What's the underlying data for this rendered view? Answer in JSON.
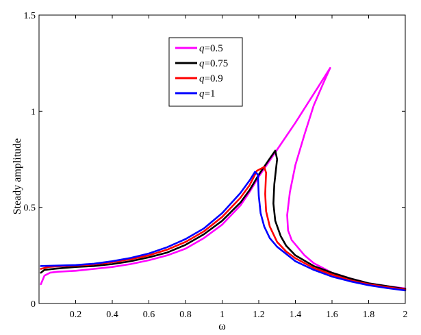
{
  "chart_data": {
    "type": "line",
    "xlabel": "ω",
    "ylabel": "Steady amplitude",
    "xlim": [
      0,
      2
    ],
    "ylim": [
      0,
      1.5
    ],
    "x_ticks": [
      "0.2",
      "0.4",
      "0.6",
      "0.8",
      "1",
      "1.2",
      "1.4",
      "1.6",
      "1.8",
      "2"
    ],
    "y_ticks": [
      "0",
      "0.5",
      "1",
      "1.5"
    ],
    "grid": false,
    "legend_position": "top-center",
    "series": [
      {
        "name": "q=0.5",
        "legend_var": "q",
        "legend_val": "=0.5",
        "color": "#ff00ff",
        "points": [
          [
            0.01,
            0.1
          ],
          [
            0.03,
            0.145
          ],
          [
            0.06,
            0.16
          ],
          [
            0.1,
            0.165
          ],
          [
            0.2,
            0.17
          ],
          [
            0.3,
            0.18
          ],
          [
            0.4,
            0.19
          ],
          [
            0.5,
            0.205
          ],
          [
            0.6,
            0.225
          ],
          [
            0.7,
            0.25
          ],
          [
            0.8,
            0.285
          ],
          [
            0.9,
            0.34
          ],
          [
            1.0,
            0.41
          ],
          [
            1.1,
            0.51
          ],
          [
            1.15,
            0.58
          ],
          [
            1.2,
            0.66
          ],
          [
            1.3,
            0.8
          ],
          [
            1.4,
            0.94
          ],
          [
            1.5,
            1.09
          ],
          [
            1.59,
            1.225
          ],
          [
            1.55,
            1.14
          ],
          [
            1.5,
            1.03
          ],
          [
            1.45,
            0.88
          ],
          [
            1.4,
            0.72
          ],
          [
            1.37,
            0.58
          ],
          [
            1.355,
            0.46
          ],
          [
            1.36,
            0.38
          ],
          [
            1.38,
            0.33
          ],
          [
            1.45,
            0.25
          ],
          [
            1.5,
            0.21
          ],
          [
            1.6,
            0.16
          ],
          [
            1.7,
            0.13
          ],
          [
            1.8,
            0.105
          ],
          [
            1.9,
            0.09
          ],
          [
            2.0,
            0.078
          ]
        ]
      },
      {
        "name": "q=0.75",
        "legend_var": "q",
        "legend_val": "=0.75",
        "color": "#000000",
        "points": [
          [
            0.01,
            0.16
          ],
          [
            0.03,
            0.175
          ],
          [
            0.1,
            0.182
          ],
          [
            0.2,
            0.19
          ],
          [
            0.3,
            0.195
          ],
          [
            0.4,
            0.205
          ],
          [
            0.5,
            0.22
          ],
          [
            0.6,
            0.24
          ],
          [
            0.7,
            0.265
          ],
          [
            0.8,
            0.305
          ],
          [
            0.9,
            0.36
          ],
          [
            1.0,
            0.43
          ],
          [
            1.1,
            0.525
          ],
          [
            1.15,
            0.59
          ],
          [
            1.2,
            0.67
          ],
          [
            1.25,
            0.74
          ],
          [
            1.29,
            0.795
          ],
          [
            1.3,
            0.75
          ],
          [
            1.285,
            0.62
          ],
          [
            1.28,
            0.52
          ],
          [
            1.29,
            0.43
          ],
          [
            1.32,
            0.35
          ],
          [
            1.35,
            0.3
          ],
          [
            1.4,
            0.25
          ],
          [
            1.5,
            0.195
          ],
          [
            1.6,
            0.16
          ],
          [
            1.7,
            0.13
          ],
          [
            1.8,
            0.105
          ],
          [
            1.9,
            0.09
          ],
          [
            2.0,
            0.075
          ]
        ]
      },
      {
        "name": "q=0.9",
        "legend_var": "q",
        "legend_val": "=0.9",
        "color": "#ff0000",
        "points": [
          [
            0.01,
            0.18
          ],
          [
            0.05,
            0.19
          ],
          [
            0.1,
            0.193
          ],
          [
            0.2,
            0.197
          ],
          [
            0.3,
            0.203
          ],
          [
            0.4,
            0.215
          ],
          [
            0.5,
            0.23
          ],
          [
            0.6,
            0.25
          ],
          [
            0.7,
            0.28
          ],
          [
            0.8,
            0.32
          ],
          [
            0.9,
            0.375
          ],
          [
            1.0,
            0.45
          ],
          [
            1.1,
            0.55
          ],
          [
            1.15,
            0.615
          ],
          [
            1.19,
            0.69
          ],
          [
            1.23,
            0.71
          ],
          [
            1.24,
            0.68
          ],
          [
            1.235,
            0.57
          ],
          [
            1.24,
            0.48
          ],
          [
            1.26,
            0.4
          ],
          [
            1.3,
            0.32
          ],
          [
            1.35,
            0.27
          ],
          [
            1.4,
            0.235
          ],
          [
            1.5,
            0.185
          ],
          [
            1.6,
            0.15
          ],
          [
            1.7,
            0.12
          ],
          [
            1.8,
            0.1
          ],
          [
            1.9,
            0.085
          ],
          [
            2.0,
            0.072
          ]
        ]
      },
      {
        "name": "q=1",
        "legend_var": "q",
        "legend_val": "=1",
        "color": "#0000ff",
        "points": [
          [
            0.01,
            0.195
          ],
          [
            0.05,
            0.196
          ],
          [
            0.1,
            0.197
          ],
          [
            0.2,
            0.2
          ],
          [
            0.3,
            0.207
          ],
          [
            0.4,
            0.22
          ],
          [
            0.5,
            0.237
          ],
          [
            0.6,
            0.26
          ],
          [
            0.7,
            0.293
          ],
          [
            0.8,
            0.335
          ],
          [
            0.9,
            0.39
          ],
          [
            1.0,
            0.47
          ],
          [
            1.1,
            0.575
          ],
          [
            1.15,
            0.64
          ],
          [
            1.18,
            0.685
          ],
          [
            1.195,
            0.67
          ],
          [
            1.2,
            0.56
          ],
          [
            1.21,
            0.47
          ],
          [
            1.23,
            0.4
          ],
          [
            1.26,
            0.34
          ],
          [
            1.3,
            0.295
          ],
          [
            1.4,
            0.22
          ],
          [
            1.5,
            0.175
          ],
          [
            1.6,
            0.14
          ],
          [
            1.7,
            0.115
          ],
          [
            1.8,
            0.095
          ],
          [
            1.9,
            0.08
          ],
          [
            2.0,
            0.068
          ]
        ]
      }
    ]
  }
}
